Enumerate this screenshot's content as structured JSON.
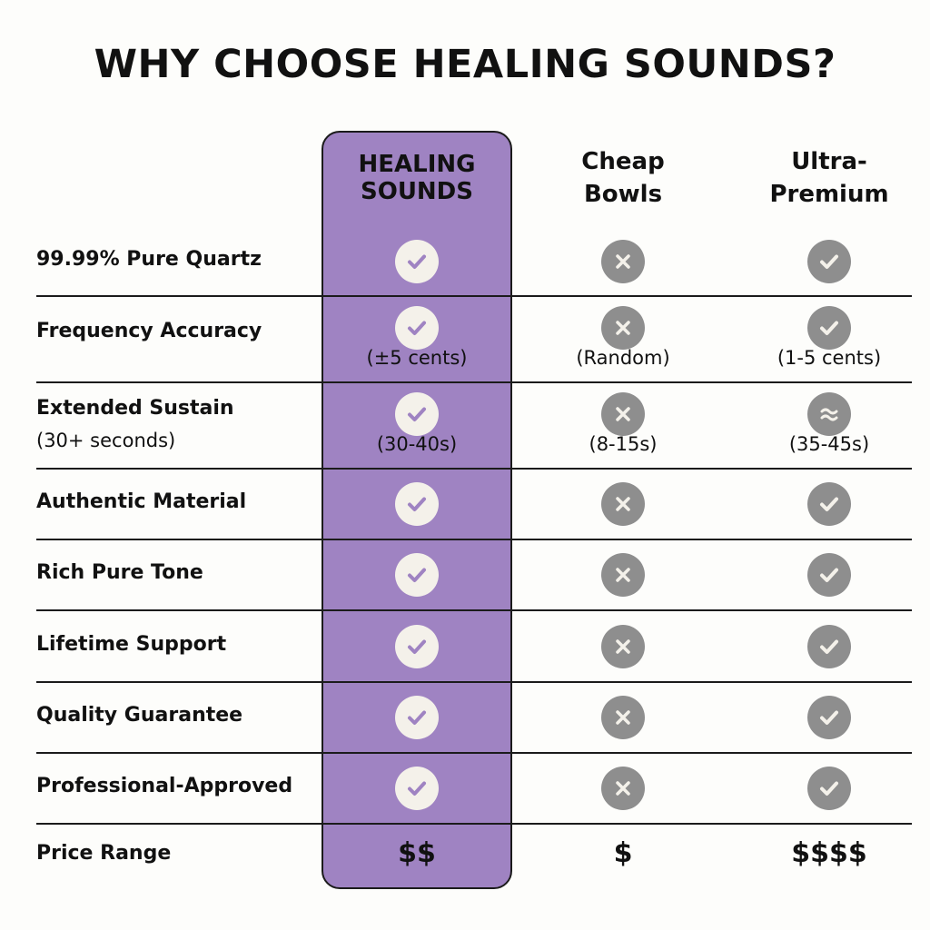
{
  "title": "WHY CHOOSE HEALING SOUNDS?",
  "colors": {
    "highlight": "#9f83c2",
    "icon_gray": "#8e8e8e",
    "check_purple": "#9f83c2",
    "icon_light": "#f4f1ea"
  },
  "columns": [
    {
      "label_line1": "HEALING",
      "label_line2": "SOUNDS"
    },
    {
      "label_line1": "Cheap",
      "label_line2": "Bowls"
    },
    {
      "label_line1": "Ultra-",
      "label_line2": "Premium"
    }
  ],
  "rows": [
    {
      "label": "99.99% Pure Quartz",
      "cells": [
        {
          "icon": "check-icon"
        },
        {
          "icon": "x-icon"
        },
        {
          "icon": "check-icon"
        }
      ]
    },
    {
      "label": "Frequency Accuracy",
      "cells": [
        {
          "icon": "check-icon",
          "note": "(±5 cents)"
        },
        {
          "icon": "x-icon",
          "note": "(Random)"
        },
        {
          "icon": "check-icon",
          "note": "(1-5 cents)"
        }
      ]
    },
    {
      "label": "Extended Sustain",
      "sublabel": "(30+ seconds)",
      "cells": [
        {
          "icon": "check-icon",
          "note": "(30-40s)"
        },
        {
          "icon": "x-icon",
          "note": "(8-15s)"
        },
        {
          "icon": "approx-icon",
          "note": "(35-45s)"
        }
      ]
    },
    {
      "label": "Authentic Material",
      "cells": [
        {
          "icon": "check-icon"
        },
        {
          "icon": "x-icon"
        },
        {
          "icon": "check-icon"
        }
      ]
    },
    {
      "label": "Rich Pure Tone",
      "cells": [
        {
          "icon": "check-icon"
        },
        {
          "icon": "x-icon"
        },
        {
          "icon": "check-icon"
        }
      ]
    },
    {
      "label": "Lifetime Support",
      "cells": [
        {
          "icon": "check-icon"
        },
        {
          "icon": "x-icon"
        },
        {
          "icon": "check-icon"
        }
      ]
    },
    {
      "label": "Quality Guarantee",
      "cells": [
        {
          "icon": "check-icon"
        },
        {
          "icon": "x-icon"
        },
        {
          "icon": "check-icon"
        }
      ]
    },
    {
      "label": "Professional-Approved",
      "cells": [
        {
          "icon": "check-icon"
        },
        {
          "icon": "x-icon"
        },
        {
          "icon": "check-icon"
        }
      ]
    },
    {
      "label": "Price Range",
      "cells": [
        {
          "price": "$$"
        },
        {
          "price": "$"
        },
        {
          "price": "$$$$"
        }
      ]
    }
  ]
}
